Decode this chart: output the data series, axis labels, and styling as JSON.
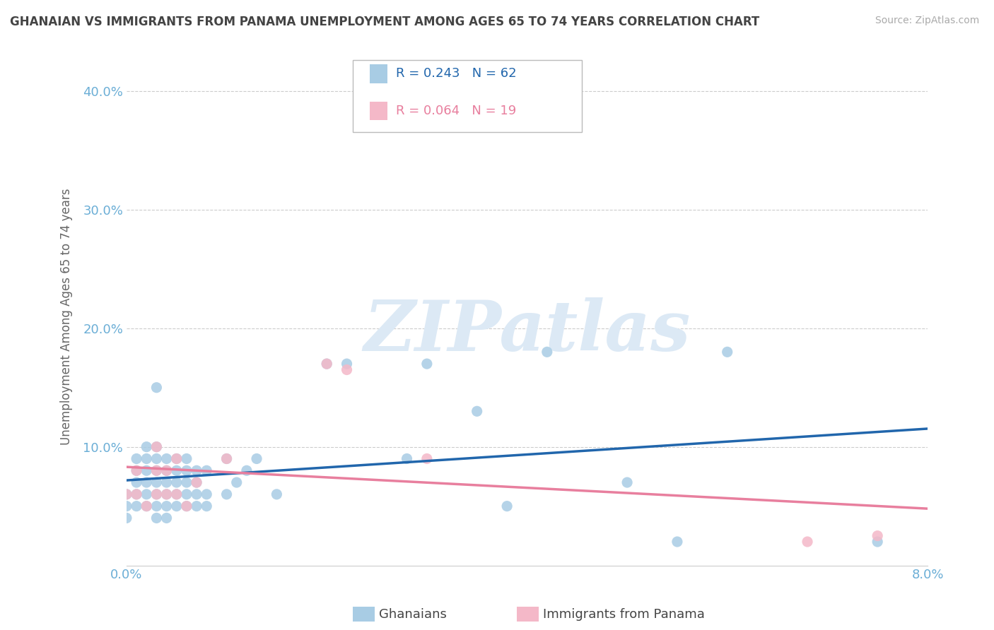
{
  "title": "GHANAIAN VS IMMIGRANTS FROM PANAMA UNEMPLOYMENT AMONG AGES 65 TO 74 YEARS CORRELATION CHART",
  "source_text": "Source: ZipAtlas.com",
  "ylabel": "Unemployment Among Ages 65 to 74 years",
  "xlim": [
    0.0,
    0.08
  ],
  "ylim": [
    0.0,
    0.42
  ],
  "y_ticks": [
    0.0,
    0.1,
    0.2,
    0.3,
    0.4
  ],
  "y_tick_labels": [
    "",
    "10.0%",
    "20.0%",
    "30.0%",
    "40.0%"
  ],
  "ghanaian_color": "#a8cce4",
  "panama_color": "#f4b8c8",
  "ghanaian_line_color": "#2166ac",
  "panama_line_color": "#e87f9e",
  "ghanaian_R": 0.243,
  "ghanaian_N": 62,
  "panama_R": 0.064,
  "panama_N": 19,
  "legend_label_1": "Ghanaians",
  "legend_label_2": "Immigrants from Panama",
  "ghanaian_scatter_x": [
    0.0,
    0.0,
    0.0,
    0.001,
    0.001,
    0.001,
    0.001,
    0.001,
    0.002,
    0.002,
    0.002,
    0.002,
    0.002,
    0.002,
    0.003,
    0.003,
    0.003,
    0.003,
    0.003,
    0.003,
    0.003,
    0.003,
    0.004,
    0.004,
    0.004,
    0.004,
    0.004,
    0.004,
    0.005,
    0.005,
    0.005,
    0.005,
    0.005,
    0.006,
    0.006,
    0.006,
    0.006,
    0.006,
    0.007,
    0.007,
    0.007,
    0.007,
    0.008,
    0.008,
    0.008,
    0.01,
    0.01,
    0.011,
    0.012,
    0.013,
    0.015,
    0.02,
    0.022,
    0.028,
    0.03,
    0.035,
    0.038,
    0.042,
    0.05,
    0.055,
    0.06,
    0.075
  ],
  "ghanaian_scatter_y": [
    0.06,
    0.05,
    0.04,
    0.05,
    0.06,
    0.07,
    0.08,
    0.09,
    0.05,
    0.06,
    0.07,
    0.08,
    0.09,
    0.1,
    0.04,
    0.05,
    0.06,
    0.07,
    0.08,
    0.09,
    0.1,
    0.15,
    0.04,
    0.05,
    0.06,
    0.07,
    0.08,
    0.09,
    0.05,
    0.06,
    0.07,
    0.08,
    0.09,
    0.05,
    0.06,
    0.07,
    0.08,
    0.09,
    0.05,
    0.06,
    0.07,
    0.08,
    0.05,
    0.06,
    0.08,
    0.06,
    0.09,
    0.07,
    0.08,
    0.09,
    0.06,
    0.17,
    0.17,
    0.09,
    0.17,
    0.13,
    0.05,
    0.18,
    0.07,
    0.02,
    0.18,
    0.02
  ],
  "panama_scatter_x": [
    0.0,
    0.001,
    0.001,
    0.002,
    0.003,
    0.003,
    0.003,
    0.004,
    0.004,
    0.005,
    0.005,
    0.006,
    0.007,
    0.01,
    0.02,
    0.022,
    0.03,
    0.068,
    0.075
  ],
  "panama_scatter_y": [
    0.06,
    0.06,
    0.08,
    0.05,
    0.06,
    0.08,
    0.1,
    0.06,
    0.08,
    0.06,
    0.09,
    0.05,
    0.07,
    0.09,
    0.17,
    0.165,
    0.09,
    0.02,
    0.025
  ],
  "background_color": "#ffffff",
  "grid_color": "#cccccc",
  "title_color": "#555555",
  "tick_color": "#6baed6",
  "watermark_text": "ZIPatlas",
  "watermark_color": "#dce9f5"
}
